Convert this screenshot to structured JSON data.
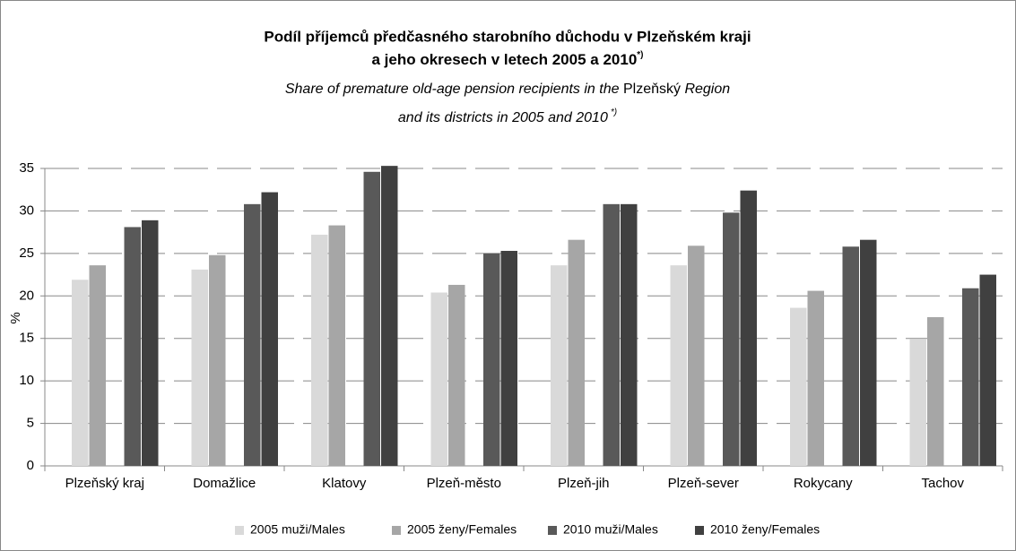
{
  "chart_data": {
    "type": "bar",
    "title": [
      "Podíl příjemců předčasného starobního důchodu v Plzeňském kraji",
      "a jeho okresech v letech 2005 a 2010"
    ],
    "title_note": "*)",
    "subtitle": [
      [
        "Share of premature old-age pension recipients in the ",
        "Plzeňský",
        " Region"
      ],
      [
        "and its districts in 2005 and 2010",
        "*)"
      ]
    ],
    "y_label": "%",
    "categories": [
      "Plzeňský kraj",
      "Domažlice",
      "Klatovy",
      "Plzeň-město",
      "Plzeň-jih",
      "Plzeň-sever",
      "Rokycany",
      "Tachov"
    ],
    "series": [
      {
        "name": "2005 muži/Males",
        "color": "#d9d9d9",
        "values": [
          21.9,
          23.1,
          27.2,
          20.4,
          23.6,
          23.6,
          18.6,
          14.9
        ]
      },
      {
        "name": "2005 ženy/Females",
        "color": "#a6a6a6",
        "values": [
          23.6,
          24.8,
          28.3,
          21.3,
          26.6,
          25.9,
          20.6,
          17.5
        ]
      },
      {
        "name": "2010 muži/Males",
        "color": "#595959",
        "values": [
          28.1,
          30.8,
          34.6,
          25.0,
          30.8,
          29.8,
          25.8,
          20.9
        ]
      },
      {
        "name": "2010 ženy/Females",
        "color": "#404040",
        "values": [
          28.9,
          32.2,
          35.3,
          25.3,
          30.8,
          32.4,
          26.6,
          22.5
        ]
      }
    ],
    "ylim": [
      0,
      35
    ],
    "yticks": [
      0,
      5,
      10,
      15,
      20,
      25,
      30,
      35
    ],
    "grid": true,
    "legend": "bottom"
  }
}
